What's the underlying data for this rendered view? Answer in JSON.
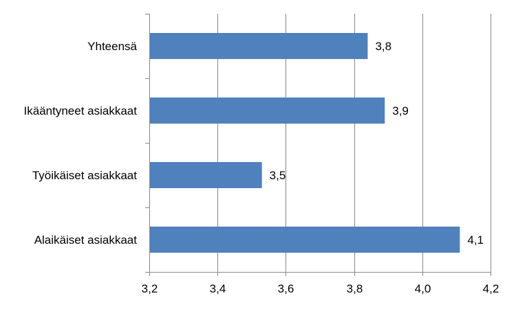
{
  "chart_data": {
    "type": "bar",
    "orientation": "horizontal",
    "categories": [
      "Yhteensä",
      "Ikääntyneet asiakkaat",
      "Työikäiset asiakkaat",
      "Alaikäiset asiakkaat"
    ],
    "values": [
      3.84,
      3.89,
      3.53,
      4.11
    ],
    "data_labels": [
      "3,8",
      "3,9",
      "3,5",
      "4,1"
    ],
    "xlim": [
      3.2,
      4.2
    ],
    "x_ticks": [
      3.2,
      3.4,
      3.6,
      3.8,
      4.0,
      4.2
    ],
    "x_tick_labels": [
      "3,2",
      "3,4",
      "3,6",
      "3,8",
      "4,0",
      "4,2"
    ],
    "title": "",
    "xlabel": "",
    "ylabel": "",
    "grid": "vertical",
    "legend": "none",
    "colors": {
      "bar": "#4F81BD",
      "grid": "#868686",
      "axis": "#868686"
    }
  }
}
